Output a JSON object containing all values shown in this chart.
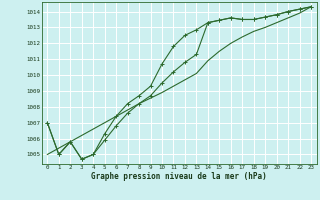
{
  "title": "Graphe pression niveau de la mer (hPa)",
  "bg_color": "#cdf0f0",
  "grid_color": "#ffffff",
  "line_color": "#2d6a2d",
  "xlim": [
    -0.5,
    23.5
  ],
  "ylim": [
    1004.4,
    1014.6
  ],
  "yticks": [
    1005,
    1006,
    1007,
    1008,
    1009,
    1010,
    1011,
    1012,
    1013,
    1014
  ],
  "xticks": [
    0,
    1,
    2,
    3,
    4,
    5,
    6,
    7,
    8,
    9,
    10,
    11,
    12,
    13,
    14,
    15,
    16,
    17,
    18,
    19,
    20,
    21,
    22,
    23
  ],
  "series1_marked": {
    "x": [
      0,
      1,
      2,
      3,
      4,
      5,
      6,
      7,
      8,
      9,
      10,
      11,
      12,
      13,
      14,
      15,
      16,
      17,
      18,
      19,
      20,
      21,
      22,
      23
    ],
    "y": [
      1007.0,
      1005.0,
      1005.8,
      1004.7,
      1005.0,
      1006.3,
      1007.4,
      1008.2,
      1008.7,
      1009.3,
      1010.7,
      1011.8,
      1012.5,
      1012.85,
      1013.3,
      1013.45,
      1013.6,
      1013.5,
      1013.5,
      1013.65,
      1013.8,
      1014.0,
      1014.15,
      1014.3
    ]
  },
  "series2_line": {
    "x": [
      0,
      1,
      2,
      3,
      4,
      5,
      6,
      7,
      8,
      9,
      10,
      11,
      12,
      13,
      14,
      15,
      16,
      17,
      18,
      19,
      20,
      21,
      22,
      23
    ],
    "y": [
      1005.0,
      1005.4,
      1005.8,
      1006.2,
      1006.6,
      1007.0,
      1007.4,
      1007.8,
      1008.2,
      1008.55,
      1008.9,
      1009.3,
      1009.7,
      1010.1,
      1010.9,
      1011.5,
      1012.0,
      1012.4,
      1012.75,
      1013.0,
      1013.3,
      1013.6,
      1013.9,
      1014.3
    ]
  },
  "series3_marked": {
    "x": [
      0,
      1,
      2,
      3,
      4,
      5,
      6,
      7,
      8,
      9,
      10,
      11,
      12,
      13,
      14,
      15,
      16,
      17,
      18,
      19,
      20,
      21,
      22,
      23
    ],
    "y": [
      1007.0,
      1005.0,
      1005.8,
      1004.7,
      1005.0,
      1005.9,
      1006.8,
      1007.6,
      1008.2,
      1008.7,
      1009.5,
      1010.2,
      1010.8,
      1011.3,
      1013.3,
      1013.45,
      1013.6,
      1013.5,
      1013.5,
      1013.65,
      1013.8,
      1014.0,
      1014.15,
      1014.3
    ]
  }
}
